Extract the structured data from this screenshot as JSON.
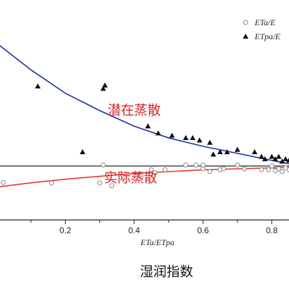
{
  "chart_data": {
    "type": "scatter",
    "xlabel": "ETa/ETpa",
    "caption": "湿润指数",
    "xlim": [
      0.0,
      0.85
    ],
    "x_ticks": [
      0.2,
      0.4,
      0.6,
      0.8
    ],
    "x_tick_labels": [
      "0.2",
      "0.4",
      "0.6",
      "0.8"
    ],
    "legend_position": "top-right",
    "series": [
      {
        "name": "ETa/E",
        "marker": "open-circle",
        "color": "#888888",
        "points": [
          [
            0.02,
            -0.35
          ],
          [
            0.16,
            -0.36
          ],
          [
            0.3,
            -0.36
          ],
          [
            0.335,
            -0.42
          ],
          [
            0.31,
            0.02
          ],
          [
            0.42,
            -0.22
          ],
          [
            0.45,
            -0.08
          ],
          [
            0.46,
            -0.14
          ],
          [
            0.49,
            -0.08
          ],
          [
            0.55,
            0.02
          ],
          [
            0.58,
            0.02
          ],
          [
            0.6,
            -0.06
          ],
          [
            0.6,
            0.02
          ],
          [
            0.62,
            -0.12
          ],
          [
            0.65,
            -0.08
          ],
          [
            0.66,
            -0.06
          ],
          [
            0.7,
            0.02
          ],
          [
            0.72,
            -0.06
          ],
          [
            0.77,
            -0.08
          ],
          [
            0.79,
            -0.08
          ],
          [
            0.8,
            0.0
          ],
          [
            0.81,
            -0.1
          ],
          [
            0.82,
            -0.06
          ],
          [
            0.83,
            -0.12
          ],
          [
            0.84,
            -0.04
          ],
          [
            0.85,
            -0.08
          ]
        ]
      },
      {
        "name": "ETpa/E",
        "marker": "filled-triangle",
        "color": "#111111",
        "points": [
          [
            0.12,
            1.7
          ],
          [
            0.25,
            0.3
          ],
          [
            0.31,
            1.65
          ],
          [
            0.315,
            1.72
          ],
          [
            0.44,
            0.85
          ],
          [
            0.47,
            0.7
          ],
          [
            0.51,
            0.65
          ],
          [
            0.55,
            0.6
          ],
          [
            0.57,
            0.6
          ],
          [
            0.59,
            0.55
          ],
          [
            0.62,
            0.5
          ],
          [
            0.63,
            0.25
          ],
          [
            0.65,
            0.3
          ],
          [
            0.67,
            0.3
          ],
          [
            0.7,
            0.35
          ],
          [
            0.75,
            0.3
          ],
          [
            0.77,
            0.2
          ],
          [
            0.78,
            0.15
          ],
          [
            0.8,
            0.2
          ],
          [
            0.81,
            0.15
          ],
          [
            0.82,
            0.2
          ],
          [
            0.83,
            0.1
          ],
          [
            0.84,
            0.15
          ],
          [
            0.85,
            0.12
          ]
        ]
      }
    ],
    "curves": [
      {
        "name": "潜在蒸散",
        "color": "#1a2ea8",
        "points": [
          [
            0.0,
            2.62
          ],
          [
            0.1,
            2.05
          ],
          [
            0.2,
            1.55
          ],
          [
            0.3,
            1.18
          ],
          [
            0.4,
            0.85
          ],
          [
            0.5,
            0.6
          ],
          [
            0.6,
            0.42
          ],
          [
            0.7,
            0.27
          ],
          [
            0.8,
            0.12
          ],
          [
            0.85,
            0.05
          ]
        ]
      },
      {
        "name": "实际蒸散",
        "color": "#e83030",
        "points": [
          [
            0.0,
            -0.45
          ],
          [
            0.1,
            -0.36
          ],
          [
            0.2,
            -0.28
          ],
          [
            0.3,
            -0.22
          ],
          [
            0.4,
            -0.16
          ],
          [
            0.5,
            -0.12
          ],
          [
            0.6,
            -0.08
          ],
          [
            0.7,
            -0.06
          ],
          [
            0.8,
            -0.04
          ],
          [
            0.85,
            -0.03
          ]
        ]
      }
    ],
    "reference_line_y": 0.0,
    "annotations": [
      {
        "text": "潜在蒸散",
        "x": 0.4,
        "y": 1.1,
        "color": "#d42828"
      },
      {
        "text": "实际蒸散",
        "x": 0.39,
        "y": -0.34,
        "color": "#d42828"
      }
    ]
  }
}
